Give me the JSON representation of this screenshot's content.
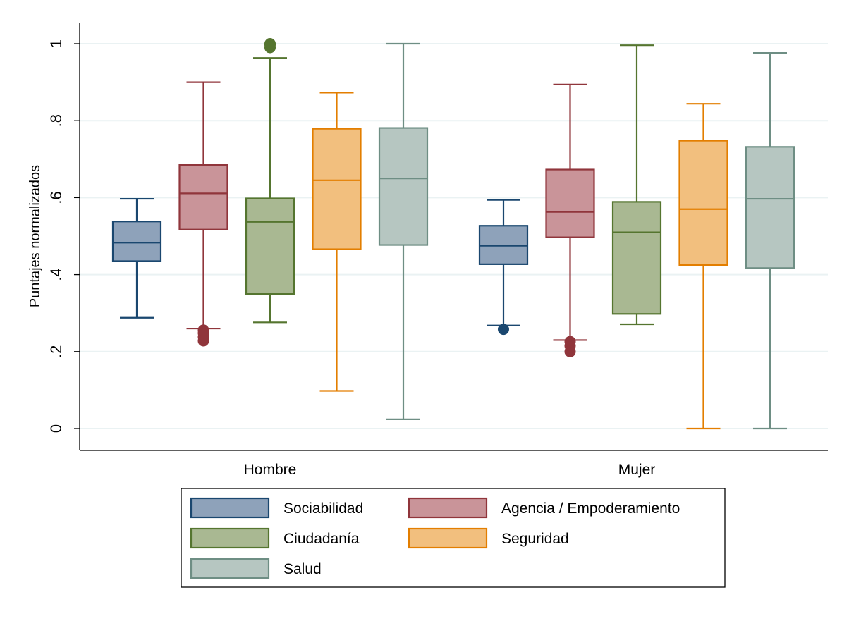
{
  "chart_data": {
    "type": "boxplot",
    "ylabel": "Puntajes normalizados",
    "ylim": [
      -0.055,
      1.055
    ],
    "y_ticks": [
      0,
      0.2,
      0.4,
      0.6,
      0.8,
      1
    ],
    "y_tick_labels": [
      "0",
      ".2",
      ".4",
      ".6",
      ".8",
      "1"
    ],
    "grid": true,
    "legend_position": "bottom",
    "categories": [
      "Hombre",
      "Mujer"
    ],
    "series": [
      {
        "name": "Sociabilidad",
        "fill": "#8ea2ba",
        "stroke": "#1a476f",
        "boxes": [
          {
            "whisker_low": 0.288,
            "q1": 0.435,
            "median": 0.483,
            "q3": 0.538,
            "whisker_high": 0.597,
            "outliers": []
          },
          {
            "whisker_low": 0.268,
            "q1": 0.427,
            "median": 0.475,
            "q3": 0.527,
            "whisker_high": 0.594,
            "outliers": [
              0.258
            ]
          }
        ]
      },
      {
        "name": "Agencia / Empoderamiento",
        "fill": "#c99499",
        "stroke": "#90353b",
        "boxes": [
          {
            "whisker_low": 0.26,
            "q1": 0.517,
            "median": 0.611,
            "q3": 0.685,
            "whisker_high": 0.9,
            "outliers": [
              0.228,
              0.238,
              0.248,
              0.256
            ]
          },
          {
            "whisker_low": 0.23,
            "q1": 0.497,
            "median": 0.563,
            "q3": 0.673,
            "whisker_high": 0.894,
            "outliers": [
              0.2,
              0.215,
              0.226
            ]
          }
        ]
      },
      {
        "name": "Ciudadanía",
        "fill": "#a9b892",
        "stroke": "#55752f",
        "boxes": [
          {
            "whisker_low": 0.276,
            "q1": 0.35,
            "median": 0.537,
            "q3": 0.598,
            "whisker_high": 0.963,
            "outliers": [
              0.99,
              0.997,
              1.0
            ]
          },
          {
            "whisker_low": 0.271,
            "q1": 0.298,
            "median": 0.51,
            "q3": 0.589,
            "whisker_high": 0.996,
            "outliers": []
          }
        ]
      },
      {
        "name": "Seguridad",
        "fill": "#f2bf7e",
        "stroke": "#e37e00",
        "boxes": [
          {
            "whisker_low": 0.098,
            "q1": 0.466,
            "median": 0.645,
            "q3": 0.779,
            "whisker_high": 0.873,
            "outliers": []
          },
          {
            "whisker_low": 0.0,
            "q1": 0.425,
            "median": 0.57,
            "q3": 0.748,
            "whisker_high": 0.844,
            "outliers": []
          }
        ]
      },
      {
        "name": "Salud",
        "fill": "#b6c6c1",
        "stroke": "#6e8e84",
        "boxes": [
          {
            "whisker_low": 0.024,
            "q1": 0.477,
            "median": 0.65,
            "q3": 0.781,
            "whisker_high": 1.0,
            "outliers": []
          },
          {
            "whisker_low": 0.0,
            "q1": 0.417,
            "median": 0.597,
            "q3": 0.732,
            "whisker_high": 0.976,
            "outliers": []
          }
        ]
      }
    ]
  }
}
